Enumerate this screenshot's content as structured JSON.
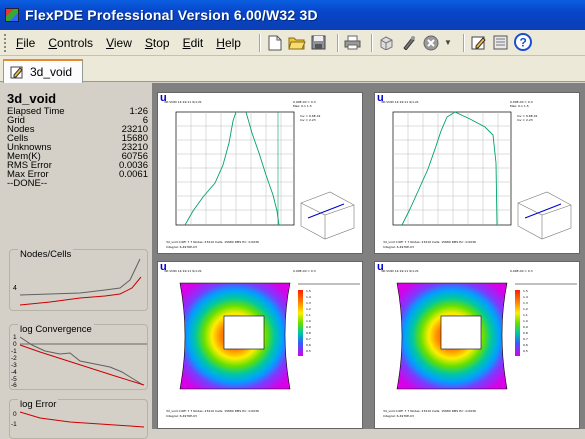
{
  "window": {
    "title": "FlexPDE Professional Version 6.00/W32 3D"
  },
  "menu": [
    {
      "label": "File",
      "key": "F",
      "rest": "ile"
    },
    {
      "label": "Controls",
      "key": "C",
      "rest": "ontrols"
    },
    {
      "label": "View",
      "key": "V",
      "rest": "iew"
    },
    {
      "label": "Stop",
      "key": "S",
      "rest": "top"
    },
    {
      "label": "Edit",
      "key": "E",
      "rest": "dit"
    },
    {
      "label": "Help",
      "key": "H",
      "rest": "elp"
    }
  ],
  "toolbar": {
    "icons": [
      "new-icon",
      "open-icon",
      "save-icon",
      "print-icon",
      "plot-icon",
      "run-icon",
      "stop-icon",
      "edit-icon",
      "view-icon",
      "help-icon"
    ]
  },
  "tab": {
    "label": "3d_void"
  },
  "status": {
    "name": "3d_void",
    "rows": [
      {
        "label": "Elapsed Time",
        "value": "1:26"
      },
      {
        "label": "Grid",
        "value": "6"
      },
      {
        "label": "Nodes",
        "value": "23210"
      },
      {
        "label": "Cells",
        "value": "15680"
      },
      {
        "label": "Unknowns",
        "value": "23210"
      },
      {
        "label": "Mem(K)",
        "value": "60756"
      },
      {
        "label": "RMS Error",
        "value": "0.0036"
      },
      {
        "label": "Max Error",
        "value": "0.0061"
      }
    ],
    "done": "--DONE--"
  },
  "mini_charts": {
    "nodes_cells": {
      "label": "Nodes/Cells",
      "ticks": [
        "4"
      ]
    },
    "log_convergence": {
      "label": "log Convergence",
      "ticks": [
        "1",
        "0",
        "-1",
        "-2",
        "-3",
        "-4",
        "-5",
        "-6"
      ]
    },
    "log_error": {
      "label": "log Error",
      "ticks": [
        "0",
        "-1"
      ]
    }
  },
  "plots": {
    "p1": {
      "title": "u"
    },
    "p2": {
      "title": "u"
    },
    "p3": {
      "title": "u"
    },
    "p4": {
      "title": "u"
    }
  },
  "colors": {
    "accent": "#0a5fe0",
    "curve": "#00a070",
    "mini_red": "#cc0000",
    "mini_gray": "#606060",
    "tab_highlight": "#e68b2c"
  }
}
